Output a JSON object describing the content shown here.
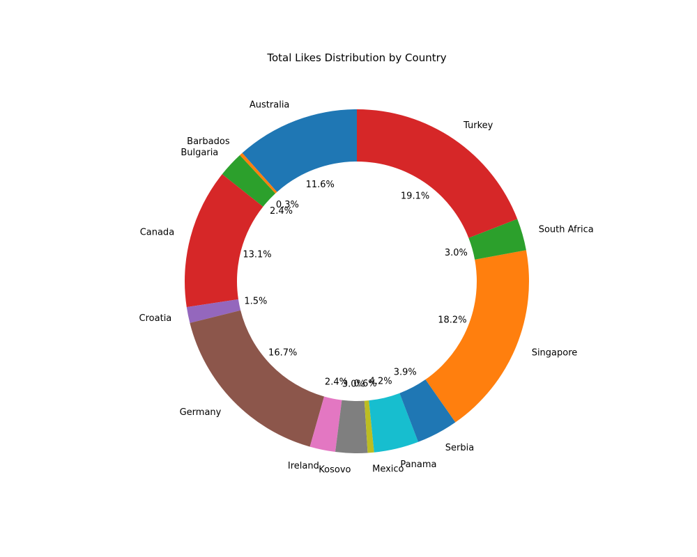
{
  "chart_data": {
    "type": "pie",
    "style": "donut",
    "title": "Total Likes Distribution by Country",
    "start_angle_deg": 90,
    "direction": "counterclockwise",
    "slices": [
      {
        "label": "Australia",
        "value": 11.6,
        "pct_label": "11.6%",
        "color": "#1f77b4"
      },
      {
        "label": "Barbados",
        "value": 0.3,
        "pct_label": "0.3%",
        "color": "#ff7f0e"
      },
      {
        "label": "Bulgaria",
        "value": 2.4,
        "pct_label": "2.4%",
        "color": "#2ca02c"
      },
      {
        "label": "Canada",
        "value": 13.1,
        "pct_label": "13.1%",
        "color": "#d62728"
      },
      {
        "label": "Croatia",
        "value": 1.5,
        "pct_label": "1.5%",
        "color": "#9467bd"
      },
      {
        "label": "Germany",
        "value": 16.7,
        "pct_label": "16.7%",
        "color": "#8c564b"
      },
      {
        "label": "Ireland",
        "value": 2.4,
        "pct_label": "2.4%",
        "color": "#e377c2"
      },
      {
        "label": "Kosovo",
        "value": 3.0,
        "pct_label": "3.0%",
        "color": "#7f7f7f"
      },
      {
        "label": "Mexico",
        "value": 0.6,
        "pct_label": "0.6%",
        "color": "#bcbd22"
      },
      {
        "label": "Panama",
        "value": 4.2,
        "pct_label": "4.2%",
        "color": "#17becf"
      },
      {
        "label": "Serbia",
        "value": 3.9,
        "pct_label": "3.9%",
        "color": "#1f77b4"
      },
      {
        "label": "Singapore",
        "value": 18.2,
        "pct_label": "18.2%",
        "color": "#ff7f0e"
      },
      {
        "label": "South Africa",
        "value": 3.0,
        "pct_label": "3.0%",
        "color": "#2ca02c"
      },
      {
        "label": "Turkey",
        "value": 19.1,
        "pct_label": "19.1%",
        "color": "#d62728"
      }
    ]
  }
}
